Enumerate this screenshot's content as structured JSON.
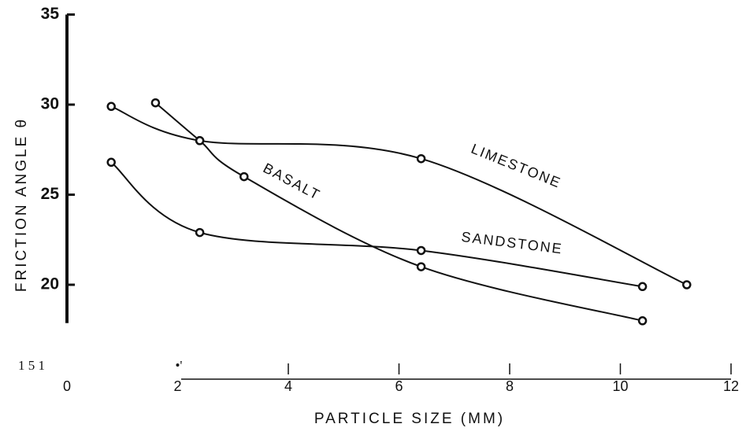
{
  "chart_data": {
    "type": "line",
    "y_label": "FRICTION ANGLE θ",
    "x_label": "PARTICLE SIZE (MM)",
    "annotations": [
      "1 5 1",
      "•'"
    ],
    "series": [
      {
        "name": "LIMESTONE",
        "color": "#111111",
        "x": [
          0.8,
          2.4,
          6.4,
          11.2
        ],
        "values": [
          29.9,
          28,
          27,
          20
        ]
      },
      {
        "name": "BASALT",
        "color": "#111111",
        "x": [
          1.6,
          2.4,
          3.2,
          6.4,
          10.4
        ],
        "values": [
          30.1,
          28,
          26,
          21,
          18
        ]
      },
      {
        "name": "SANDSTONE",
        "color": "#111111",
        "x": [
          0.8,
          2.4,
          6.4,
          10.4
        ],
        "values": [
          26.8,
          22.9,
          21.9,
          19.9
        ]
      }
    ],
    "xlim": [
      0,
      12
    ],
    "xticks": [
      0,
      2,
      4,
      6,
      8,
      10,
      12
    ],
    "ylim": [
      18,
      35
    ],
    "yticks": [
      20,
      25,
      30,
      35
    ]
  }
}
